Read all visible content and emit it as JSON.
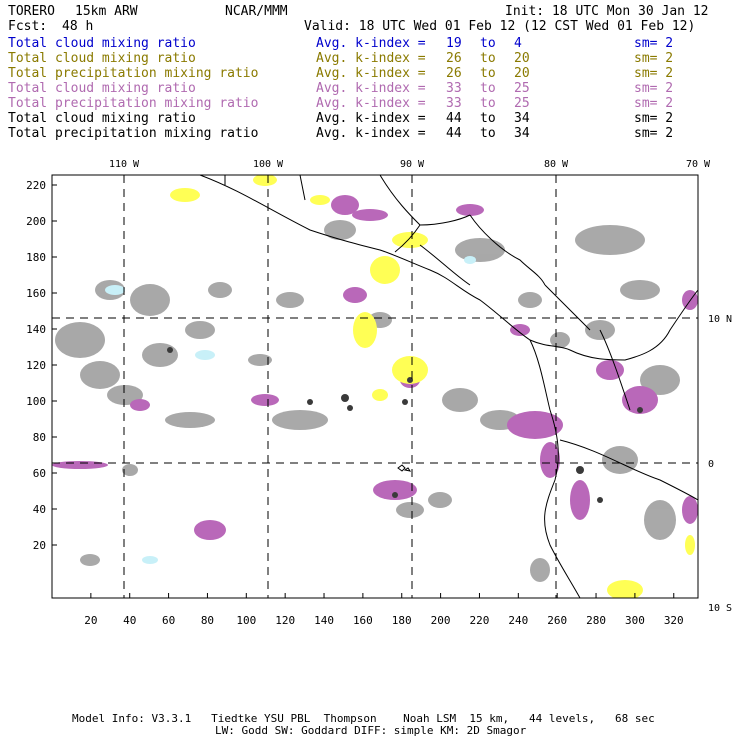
{
  "header": {
    "model": "TORERO",
    "resolution": "15km ARW",
    "org": "NCAR/MMM",
    "init": "Init: 18 UTC Mon 30 Jan 12",
    "fcst_label": "Fcst:",
    "fcst_value": "48 h",
    "valid": "Valid: 18 UTC Wed 01 Feb 12 (12 CST Wed 01 Feb 12)"
  },
  "legend": [
    {
      "field": "Total cloud mixing ratio",
      "kindex": "Avg. k-index =",
      "from": "19",
      "to_word": "to",
      "to": "4",
      "sm": "sm= 2",
      "color": "#0000cc"
    },
    {
      "field": "Total cloud mixing ratio",
      "kindex": "Avg. k-index =",
      "from": "26",
      "to_word": "to",
      "to": "20",
      "sm": "sm= 2",
      "color": "#8a7a00"
    },
    {
      "field": "Total precipitation mixing ratio",
      "kindex": "Avg. k-index =",
      "from": "26",
      "to_word": "to",
      "to": "20",
      "sm": "sm= 2",
      "color": "#8a7a00"
    },
    {
      "field": "Total cloud mixing ratio",
      "kindex": "Avg. k-index =",
      "from": "33",
      "to_word": "to",
      "to": "25",
      "sm": "sm= 2",
      "color": "#b06ab0"
    },
    {
      "field": "Total precipitation mixing ratio",
      "kindex": "Avg. k-index =",
      "from": "33",
      "to_word": "to",
      "to": "25",
      "sm": "sm= 2",
      "color": "#b06ab0"
    },
    {
      "field": "Total cloud mixing ratio",
      "kindex": "Avg. k-index =",
      "from": "44",
      "to_word": "to",
      "to": "34",
      "sm": "sm= 2",
      "color": "#000000"
    },
    {
      "field": "Total precipitation mixing ratio",
      "kindex": "Avg. k-index =",
      "from": "44",
      "to_word": "to",
      "to": "34",
      "sm": "sm= 2",
      "color": "#000000"
    }
  ],
  "map": {
    "x_ticks": [
      "20",
      "40",
      "60",
      "80",
      "100",
      "120",
      "140",
      "160",
      "180",
      "200",
      "220",
      "240",
      "260",
      "280",
      "300",
      "320"
    ],
    "y_ticks": [
      "20",
      "40",
      "60",
      "80",
      "100",
      "120",
      "140",
      "160",
      "180",
      "200",
      "220"
    ],
    "lon_labels": [
      "110 W",
      "100 W",
      "90 W",
      "80 W",
      "70 W"
    ],
    "lat_labels": [
      "10 N",
      "0",
      "10 S"
    ],
    "colors": {
      "cloud": "#9a9a9a",
      "cloud_dark": "#4a4a4a",
      "purple": "#b968b9",
      "yellow": "#ffff55",
      "cyan": "#c8f0f8"
    }
  },
  "footer": {
    "line1": "Model Info: V3.3.1   Tiedtke YSU PBL  Thompson    Noah LSM  15 km,   44 levels,   68 sec",
    "line2": "LW: Godd SW: Goddard DIFF: simple KM: 2D Smagor"
  }
}
